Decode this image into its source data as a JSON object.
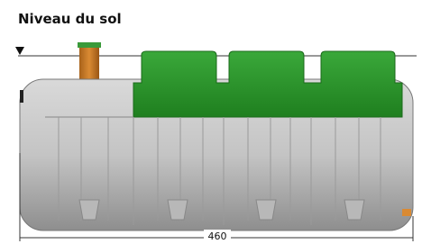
{
  "header": {
    "title": "Niveau du sol"
  },
  "dimension": {
    "label": 460
  }
}
